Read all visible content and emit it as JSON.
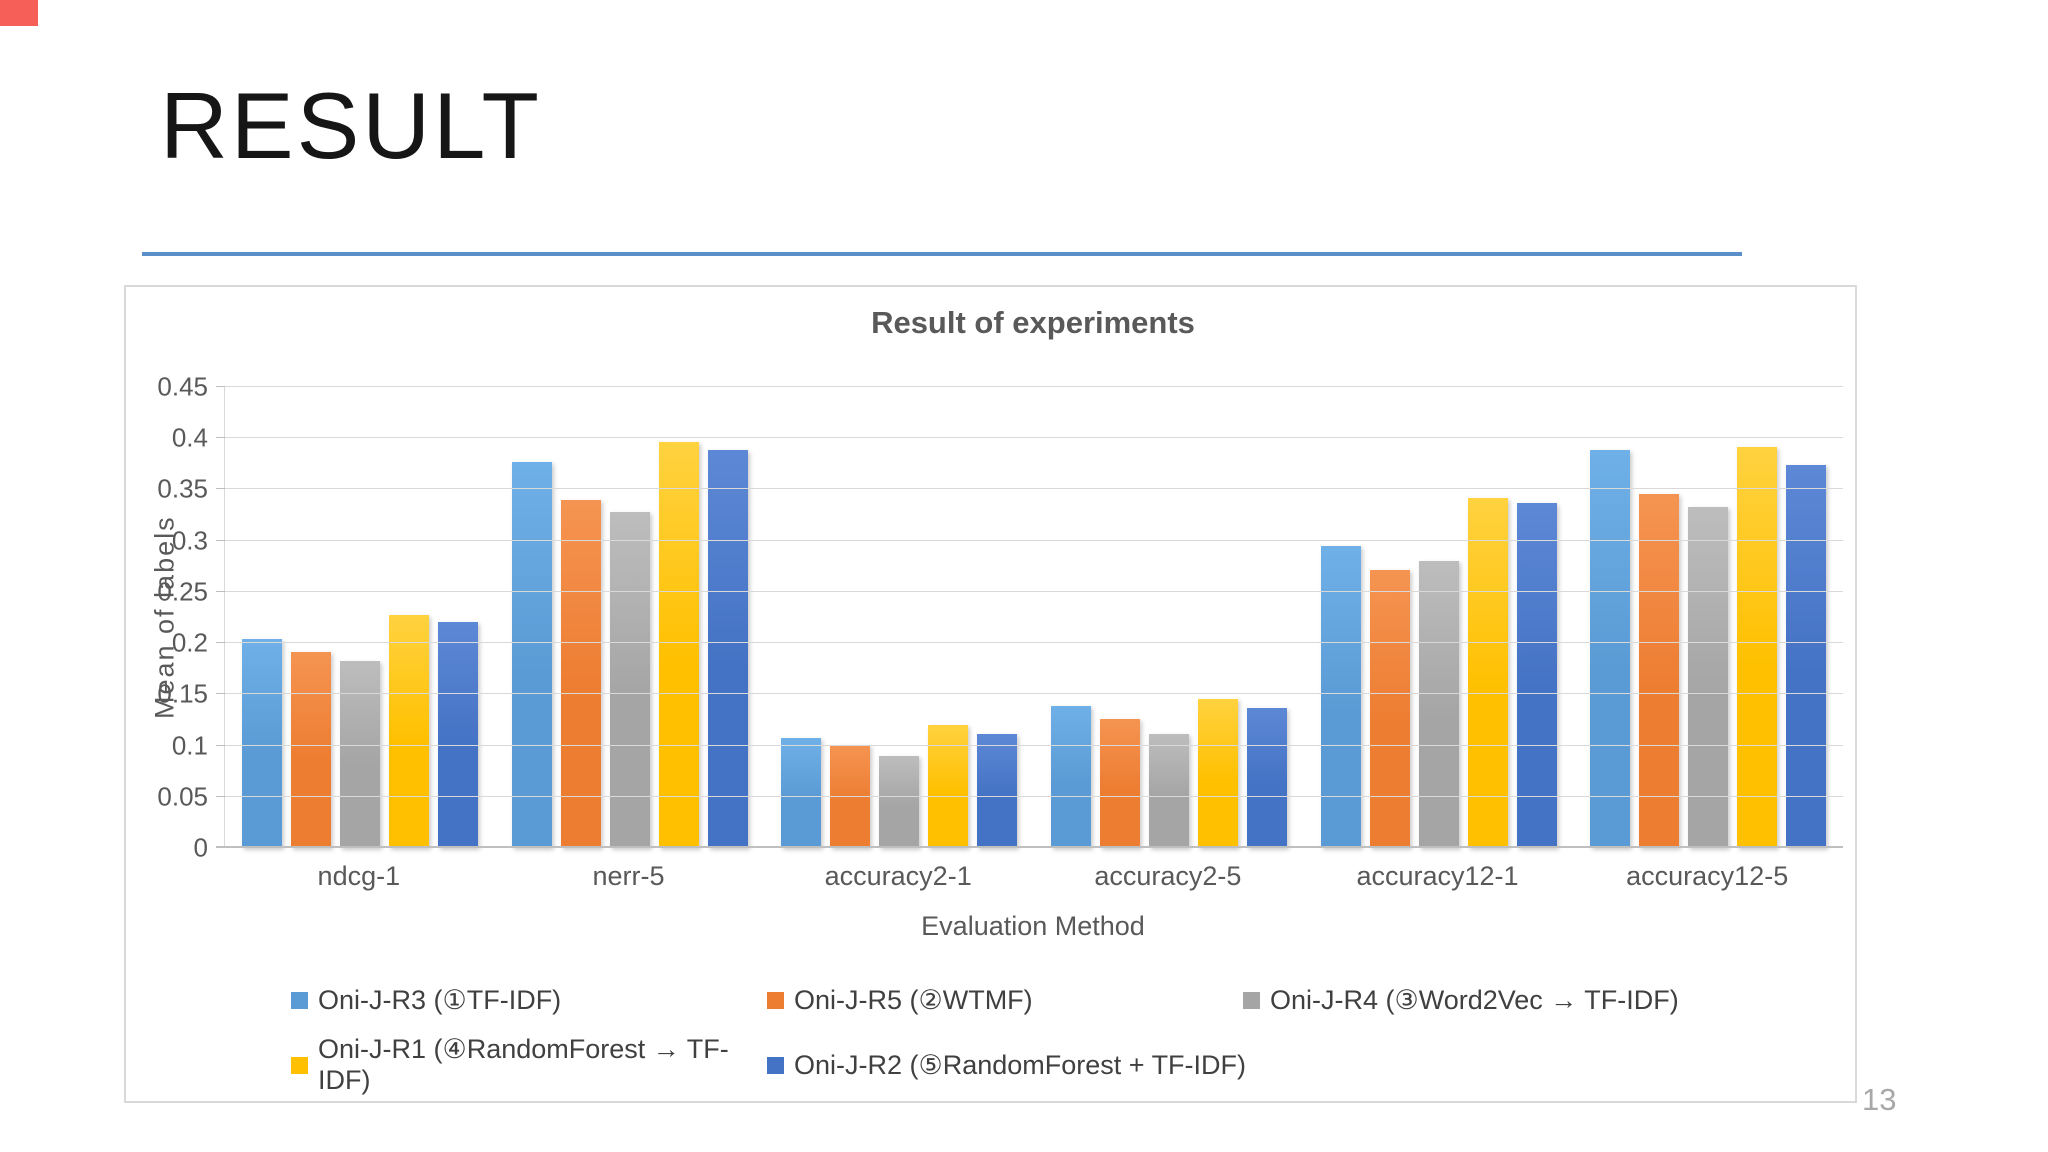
{
  "slide": {
    "title": "RESULT",
    "page_number": "13",
    "accent_color": "#5b8fc9",
    "corner_fragment_color": "#f55f57"
  },
  "chart_data": {
    "type": "bar",
    "title": "Result of experiments",
    "xlabel": "Evaluation Method",
    "ylabel": "Mean of labels",
    "ylim": [
      0,
      0.45
    ],
    "ytick_step": 0.05,
    "yticks": [
      "0",
      "0.05",
      "0.1",
      "0.15",
      "0.2",
      "0.25",
      "0.3",
      "0.35",
      "0.4",
      "0.45"
    ],
    "grid": true,
    "legend_position": "bottom",
    "categories": [
      "ndcg-1",
      "nerr-5",
      "accuracy2-1",
      "accuracy2-5",
      "accuracy12-1",
      "accuracy12-5"
    ],
    "series": [
      {
        "name": "Oni-J-R3 (①TF-IDF)",
        "color": "#5b9bd5",
        "color_light": "#6fb0e8",
        "values": [
          0.204,
          0.377,
          0.107,
          0.139,
          0.295,
          0.389
        ]
      },
      {
        "name": "Oni-J-R5 (②WTMF)",
        "color": "#ed7d31",
        "color_light": "#f59452",
        "values": [
          0.191,
          0.34,
          0.101,
          0.126,
          0.271,
          0.346
        ]
      },
      {
        "name": "Oni-J-R4 (③Word2Vec → TF-IDF)",
        "color": "#a5a5a5",
        "color_light": "#bdbdbd",
        "values": [
          0.183,
          0.328,
          0.09,
          0.111,
          0.28,
          0.333
        ]
      },
      {
        "name": "Oni-J-R1 (④RandomForest → TF-IDF)",
        "color": "#ffc000",
        "color_light": "#ffd23f",
        "values": [
          0.227,
          0.396,
          0.12,
          0.145,
          0.342,
          0.391
        ]
      },
      {
        "name": "Oni-J-R2 (⑤RandomForest + TF-IDF)",
        "color": "#4472c4",
        "color_light": "#5d88d6",
        "values": [
          0.221,
          0.389,
          0.111,
          0.137,
          0.337,
          0.374
        ]
      }
    ]
  }
}
